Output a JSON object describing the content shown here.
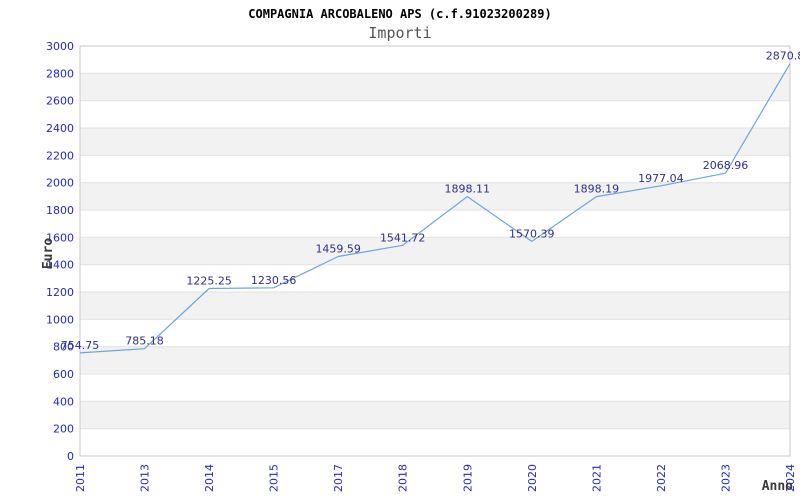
{
  "header": {
    "title": "COMPAGNIA ARCOBALENO APS (c.f.91023200289)",
    "subtitle": "Importi"
  },
  "chart_data": {
    "type": "line",
    "title": "COMPAGNIA ARCOBALENO APS (c.f.91023200289)",
    "subtitle": "Importi",
    "xlabel": "Anno",
    "ylabel": "Euro",
    "categories": [
      "2011",
      "2013",
      "2014",
      "2015",
      "2017",
      "2018",
      "2019",
      "2020",
      "2021",
      "2022",
      "2023",
      "2024"
    ],
    "values": [
      754.75,
      785.18,
      1225.25,
      1230.56,
      1459.59,
      1541.72,
      1898.11,
      1570.39,
      1898.19,
      1977.04,
      2068.96,
      2870.8
    ],
    "point_labels": [
      "754.75",
      "785.18",
      "1225.25",
      "1230.56",
      "1459.59",
      "1541.72",
      "1898.11",
      "1570.39",
      "1898.19",
      "1977.04",
      "2068.96",
      "2870.8"
    ],
    "ylim": [
      0,
      3000
    ],
    "ytick_step": 200,
    "grid": true,
    "legend": "none",
    "colors": {
      "line": "#70a3e2",
      "tick_label": "#2525cd",
      "point_label": "#2f2f8c",
      "band": "#f2f2f2",
      "gridline": "#e1e1e1",
      "border": "#c9c9c9"
    }
  }
}
